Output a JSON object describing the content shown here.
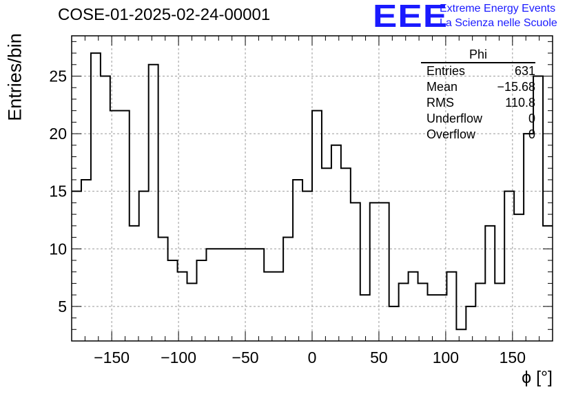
{
  "title": "COSE-01-2025-02-24-00001",
  "brand": {
    "logo": "EEE",
    "line1": "Extreme Energy Events",
    "line2": "La Scienza nelle Scuole",
    "color": "#1a1aff"
  },
  "stats": {
    "name": "Phi",
    "rows": [
      {
        "label": "Entries",
        "value": "631"
      },
      {
        "label": "Mean",
        "value": "−15.68"
      },
      {
        "label": "RMS",
        "value": "110.8"
      },
      {
        "label": "Underflow",
        "value": "0"
      },
      {
        "label": "Overflow",
        "value": "0"
      }
    ]
  },
  "chart_data": {
    "type": "histogram",
    "xlabel": "ϕ [°]",
    "ylabel": "Entries/bin",
    "xlim": [
      -180,
      180
    ],
    "ylim": [
      2,
      28.5
    ],
    "grid": true,
    "x_ticks": [
      -150,
      -100,
      -50,
      0,
      50,
      100,
      150
    ],
    "x_tick_labels": [
      "−150",
      "−100",
      "−50",
      "0",
      "50",
      "100",
      "150"
    ],
    "y_ticks": [
      5,
      10,
      15,
      20,
      25
    ],
    "y_tick_labels": [
      "5",
      "10",
      "15",
      "20",
      "25"
    ],
    "bin_edges": [
      -180,
      -172.8,
      -165.6,
      -158.4,
      -151.2,
      -144,
      -136.8,
      -129.6,
      -122.4,
      -115.2,
      -108,
      -100.8,
      -93.6,
      -86.4,
      -79.2,
      -72,
      -64.8,
      -57.6,
      -50.4,
      -43.2,
      -36,
      -28.8,
      -21.6,
      -14.4,
      -7.2,
      0,
      7.2,
      14.4,
      21.6,
      28.8,
      36,
      43.2,
      50.4,
      57.6,
      64.8,
      72,
      79.2,
      86.4,
      93.6,
      100.8,
      108,
      115.2,
      122.4,
      129.6,
      136.8,
      144,
      151.2,
      158.4,
      165.6,
      172.8,
      180
    ],
    "counts": [
      15,
      16,
      27,
      25,
      22,
      22,
      12,
      15,
      26,
      11,
      9,
      8,
      7,
      9,
      10,
      10,
      10,
      10,
      10,
      10,
      8,
      8,
      11,
      16,
      15,
      22,
      17,
      19,
      17,
      14,
      6,
      14,
      14,
      5,
      7,
      8,
      7,
      6,
      6,
      8,
      3,
      5,
      7,
      12,
      7,
      15,
      13,
      20,
      25,
      12
    ],
    "line_color": "#000000"
  }
}
